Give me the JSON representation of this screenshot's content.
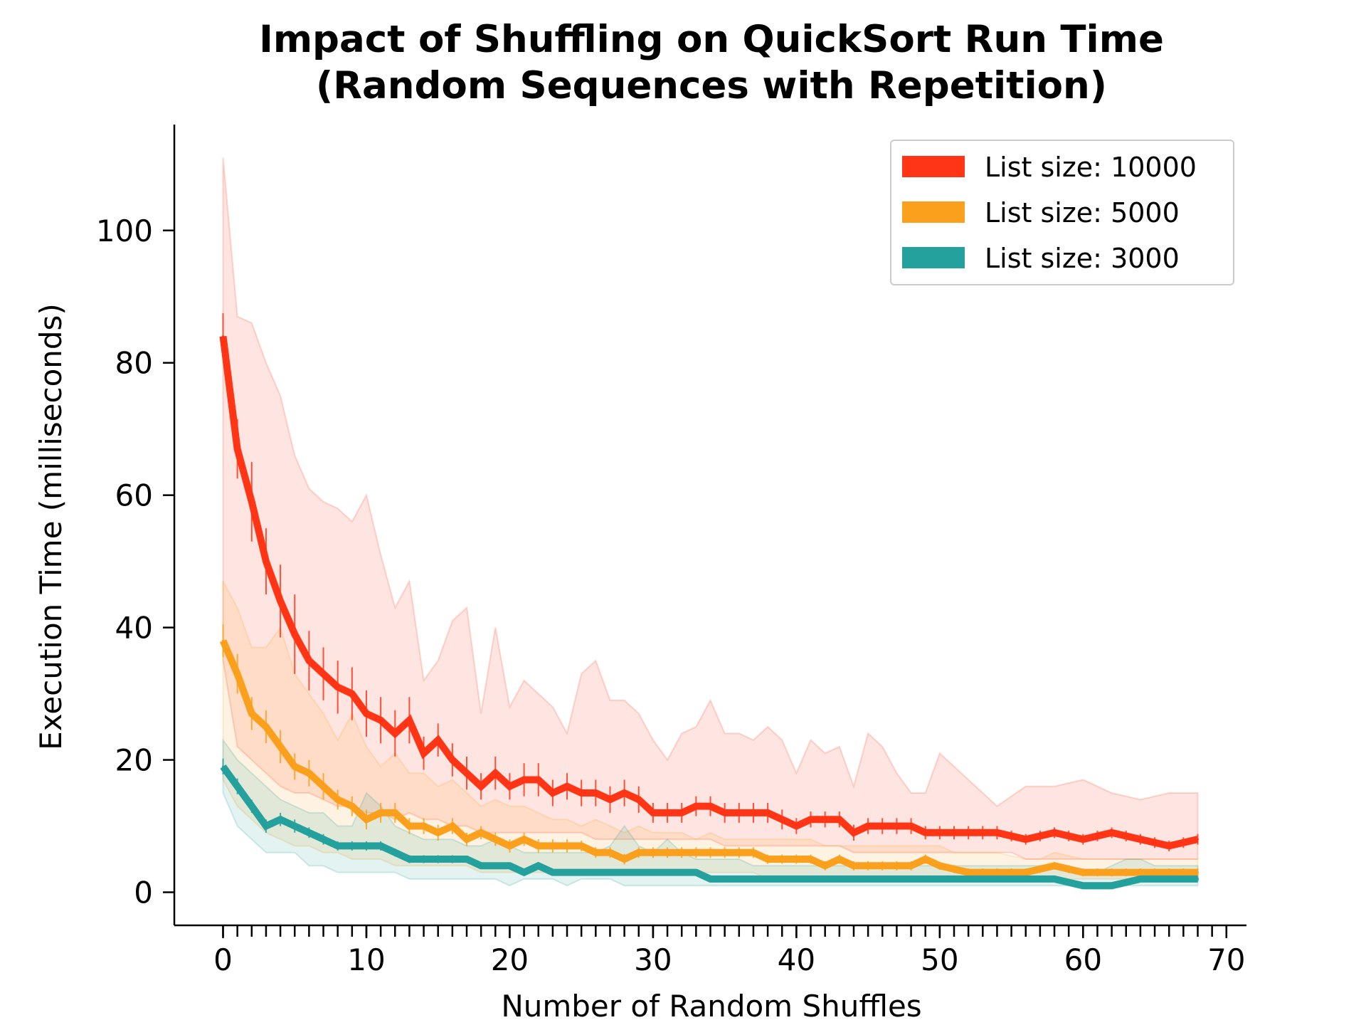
{
  "chart_data": {
    "type": "line",
    "title_lines": [
      "Impact of Shuffling on QuickSort Run Time",
      "(Random Sequences with Repetition)"
    ],
    "xlabel": "Number of Random Shuffles",
    "ylabel": "Execution Time (milliseconds)",
    "xlim": [
      -3.4,
      71.4
    ],
    "ylim": [
      -5,
      116
    ],
    "xticks": [
      0,
      10,
      20,
      30,
      40,
      50,
      60,
      70
    ],
    "xticks_minor": [
      0,
      1,
      2,
      3,
      4,
      5,
      6,
      7,
      8,
      9,
      10,
      11,
      12,
      13,
      14,
      15,
      16,
      17,
      18,
      19,
      20,
      21,
      22,
      23,
      24,
      25,
      26,
      27,
      28,
      29,
      30,
      31,
      32,
      33,
      34,
      35,
      36,
      37,
      38,
      39,
      40,
      41,
      42,
      43,
      44,
      45,
      46,
      47,
      48,
      49,
      50,
      51,
      52,
      53,
      54,
      55,
      56,
      57,
      58,
      59,
      60,
      61,
      62,
      63,
      64,
      65,
      66,
      67,
      68,
      69,
      70
    ],
    "yticks": [
      0,
      20,
      40,
      60,
      80,
      100
    ],
    "legend_position": "top-right",
    "grid": false,
    "x": [
      0,
      1,
      2,
      3,
      4,
      5,
      6,
      7,
      8,
      9,
      10,
      11,
      12,
      13,
      14,
      15,
      16,
      17,
      18,
      19,
      20,
      21,
      22,
      23,
      24,
      25,
      26,
      27,
      28,
      29,
      30,
      31,
      32,
      33,
      34,
      35,
      36,
      37,
      38,
      39,
      40,
      41,
      42,
      43,
      44,
      45,
      46,
      47,
      48,
      49,
      50,
      51,
      52,
      53,
      54,
      55,
      56,
      57,
      58,
      59,
      60,
      61,
      62,
      63,
      64,
      65,
      66,
      67,
      68
    ],
    "series": [
      {
        "name": "List size: 10000",
        "color": "#ff3516",
        "values": [
          84,
          67,
          59,
          50,
          44,
          39,
          35,
          33,
          31,
          30,
          27,
          26,
          24,
          26,
          21,
          23,
          20,
          18,
          16,
          18,
          16,
          17,
          17,
          15,
          16,
          15,
          15,
          14,
          15,
          14,
          12,
          12,
          12,
          13,
          13,
          12,
          12,
          12,
          12,
          11,
          10,
          11,
          11,
          11,
          9,
          10,
          10,
          10,
          10,
          9,
          9,
          9,
          9,
          9,
          9,
          8.5,
          8,
          8.5,
          9,
          8.5,
          8,
          8.5,
          9,
          8.5,
          8,
          7.5,
          7,
          7.5,
          8
        ],
        "band_upper": [
          111,
          87,
          86,
          80,
          75,
          66,
          61,
          59,
          58,
          56,
          60,
          51,
          43,
          47,
          32,
          35,
          41,
          43,
          27,
          40,
          28,
          32,
          30,
          28,
          24,
          33,
          35,
          29,
          29,
          27,
          23,
          20,
          24,
          25,
          29,
          24,
          24,
          23,
          25,
          23,
          18,
          23,
          21,
          22,
          16,
          24,
          22,
          18,
          15,
          15,
          21,
          19,
          17,
          15,
          13,
          14.5,
          16,
          16,
          16,
          16.5,
          17,
          16,
          15,
          14.5,
          14,
          14.5,
          15,
          15,
          15
        ],
        "band_lower": [
          35,
          22,
          20,
          18,
          16,
          15,
          15,
          14,
          13,
          13,
          12,
          12,
          11,
          12,
          11,
          11,
          10,
          10,
          9,
          9,
          9,
          9,
          9,
          9,
          9,
          9,
          8,
          8,
          8,
          8,
          8,
          8,
          8,
          8,
          8,
          7,
          7,
          7,
          7,
          7,
          7,
          7,
          7,
          7,
          6,
          6,
          6,
          6,
          6,
          6,
          6,
          6,
          6,
          6,
          6,
          6,
          5,
          5,
          5,
          5,
          5,
          5,
          5,
          5,
          5,
          5,
          5,
          5,
          5
        ],
        "error": [
          3.5,
          4.5,
          6,
          5,
          5.5,
          6,
          4.5,
          4,
          4,
          4,
          3.5,
          3.5,
          3.5,
          3.5,
          2.5,
          2.5,
          2.5,
          2.5,
          2,
          2.5,
          2,
          2.5,
          2.5,
          2,
          2,
          2,
          2,
          2,
          2,
          2,
          1.5,
          1.5,
          1.5,
          1.5,
          1.5,
          1.5,
          1.5,
          1.5,
          1.5,
          1.5,
          1.2,
          1.2,
          1.2,
          1.2,
          1.2,
          1.2,
          1.2,
          1.2,
          1.2,
          1,
          1,
          1,
          1,
          1,
          1,
          0.8,
          0.8,
          0.8,
          0.8,
          0.8,
          0.8,
          0.8,
          0.8,
          0.8,
          0.8,
          0.8,
          0.8,
          0.8,
          0.8
        ]
      },
      {
        "name": "List size: 5000",
        "color": "#fba01d",
        "values": [
          38,
          33,
          27,
          25,
          22,
          19,
          18,
          16,
          14,
          13,
          11,
          12,
          12,
          10,
          10,
          9,
          10,
          8,
          9,
          8,
          7,
          8,
          7,
          7,
          7,
          7,
          6,
          6,
          5,
          6,
          6,
          6,
          6,
          6,
          6,
          6,
          6,
          6,
          5,
          5,
          5,
          5,
          4,
          5,
          4,
          4,
          4,
          4,
          4,
          5,
          4,
          3.5,
          3,
          3,
          3,
          3,
          3,
          3.5,
          4,
          3.5,
          3,
          3,
          3,
          3,
          3,
          3,
          3,
          3,
          3
        ],
        "band_upper": [
          47,
          43,
          37,
          37,
          40,
          33,
          30,
          27,
          23,
          27,
          22,
          19,
          21,
          18,
          18,
          16,
          17,
          15,
          13,
          14,
          13,
          13,
          12,
          11,
          11,
          10,
          11,
          10,
          9,
          10,
          9,
          9,
          9,
          8,
          9,
          8,
          8,
          8,
          8,
          8,
          8,
          8,
          7,
          7,
          7,
          7,
          7,
          7,
          7,
          7,
          7,
          6,
          6,
          6,
          6,
          5.5,
          5,
          5,
          6,
          5.5,
          5,
          5,
          5,
          5,
          5,
          5,
          5,
          5,
          5
        ],
        "band_lower": [
          17,
          13,
          11,
          9,
          8,
          7,
          7,
          6,
          6,
          5,
          5,
          5,
          4,
          4,
          4,
          4,
          4,
          4,
          3,
          3,
          3,
          3,
          3,
          3,
          3,
          3,
          3,
          3,
          3,
          3,
          3,
          3,
          3,
          3,
          3,
          3,
          3,
          3,
          2,
          2,
          2,
          2,
          2,
          2,
          2,
          2,
          2,
          2,
          2,
          2,
          2,
          2,
          2,
          2,
          2,
          2,
          2,
          2,
          2,
          2,
          2,
          2,
          2,
          2,
          2,
          2,
          2,
          2,
          2
        ],
        "error": [
          2.5,
          3,
          2.5,
          2.5,
          2.5,
          2,
          2,
          2,
          1.5,
          1.5,
          1.5,
          1.5,
          1.5,
          1.2,
          1.2,
          1.2,
          1.2,
          1,
          1,
          1,
          1,
          1,
          1,
          1,
          1,
          0.8,
          0.8,
          0.8,
          0.8,
          0.8,
          0.8,
          0.8,
          0.8,
          0.8,
          0.8,
          0.8,
          0.8,
          0.8,
          0.7,
          0.7,
          0.7,
          0.7,
          0.7,
          0.7,
          0.7,
          0.7,
          0.7,
          0.7,
          0.7,
          0.7,
          0.6,
          0.6,
          0.6,
          0.6,
          0.6,
          0.6,
          0.6,
          0.6,
          0.6,
          0.6,
          0.6,
          0.6,
          0.6,
          0.6,
          0.6,
          0.6,
          0.6,
          0.6,
          0.6
        ]
      },
      {
        "name": "List size: 3000",
        "color": "#24a19c",
        "values": [
          19,
          16,
          13,
          10,
          11,
          10,
          9,
          8,
          7,
          7,
          7,
          7,
          6,
          5,
          5,
          5,
          5,
          5,
          4,
          4,
          4,
          3,
          4,
          3,
          3,
          3,
          3,
          3,
          3,
          3,
          3,
          3,
          3,
          3,
          2,
          2,
          2,
          2,
          2,
          2,
          2,
          2,
          2,
          2,
          2,
          2,
          2,
          2,
          2,
          2,
          2,
          2,
          2,
          2,
          2,
          2,
          2,
          2,
          2,
          1.5,
          1,
          1,
          1,
          1.5,
          2,
          2,
          2,
          2,
          2
        ],
        "band_upper": [
          23,
          20,
          18,
          16,
          14,
          13,
          12,
          12,
          10,
          10,
          15,
          13,
          10,
          9,
          8,
          8,
          8,
          7,
          7,
          8,
          7,
          6,
          6,
          6,
          6,
          6,
          6,
          7,
          10,
          7,
          6,
          8,
          6,
          5,
          5,
          5,
          5,
          4,
          4,
          4,
          4,
          4,
          4,
          4,
          4,
          4,
          4,
          4,
          4,
          4,
          4,
          4,
          4,
          4,
          4,
          4,
          4,
          4,
          4,
          3,
          3,
          3,
          4,
          5,
          5,
          4,
          4,
          4,
          4
        ],
        "band_lower": [
          15,
          10,
          8,
          6,
          6,
          6,
          4,
          4,
          3,
          3,
          3,
          3,
          3,
          2,
          2,
          2,
          2,
          2,
          2,
          2,
          1,
          2,
          2,
          2,
          1,
          2,
          2,
          2,
          1,
          1,
          1,
          1,
          1,
          1,
          1,
          1,
          1,
          1,
          1,
          1,
          1,
          1,
          1,
          1,
          1,
          1,
          1,
          1,
          1,
          1,
          1,
          1,
          1,
          1,
          1,
          1,
          1,
          1,
          1,
          1,
          0.5,
          0.5,
          0.5,
          1,
          1,
          1,
          1,
          1,
          1
        ],
        "error": [
          1.2,
          1.2,
          1,
          1,
          1,
          1,
          0.8,
          0.8,
          0.7,
          0.7,
          0.7,
          0.7,
          0.6,
          0.6,
          0.6,
          0.6,
          0.6,
          0.5,
          0.5,
          0.5,
          0.5,
          0.5,
          0.5,
          0.5,
          0.5,
          0.5,
          0.5,
          0.5,
          0.5,
          0.5,
          0.5,
          0.5,
          0.5,
          0.5,
          0.4,
          0.4,
          0.4,
          0.4,
          0.4,
          0.4,
          0.4,
          0.4,
          0.4,
          0.4,
          0.4,
          0.4,
          0.4,
          0.4,
          0.4,
          0.4,
          0.4,
          0.4,
          0.4,
          0.4,
          0.4,
          0.4,
          0.4,
          0.4,
          0.4,
          0.4,
          0.4,
          0.4,
          0.4,
          0.4,
          0.4,
          0.4,
          0.4,
          0.4,
          0.4
        ]
      }
    ]
  }
}
